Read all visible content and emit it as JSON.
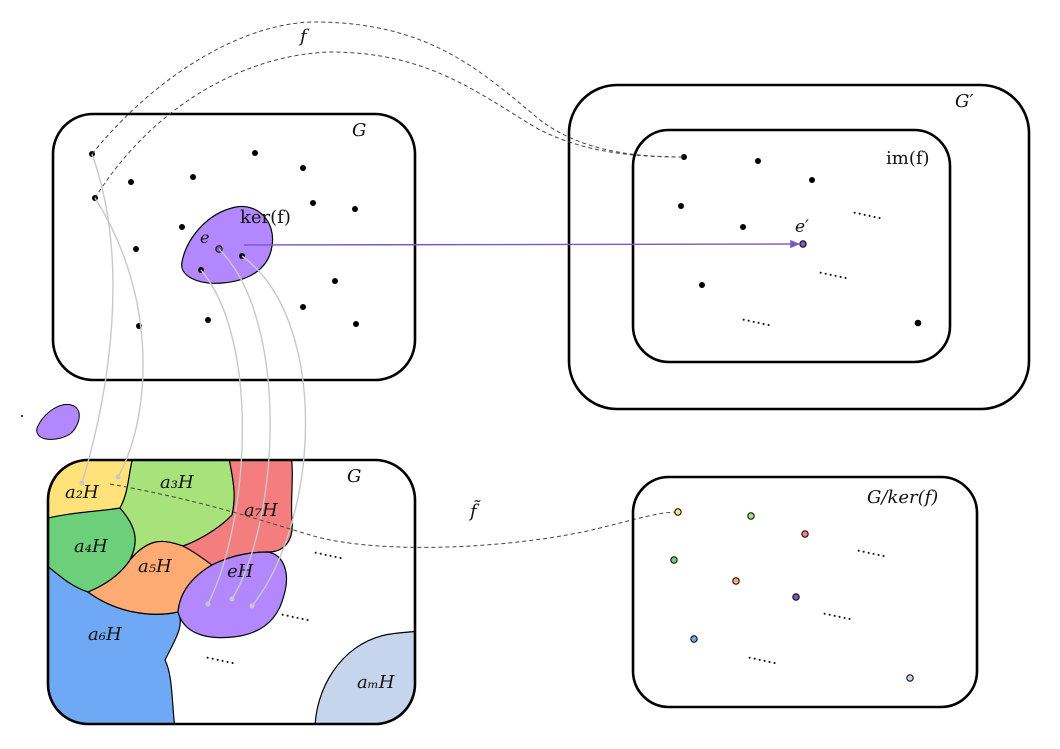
{
  "labels": {
    "G_top": "G",
    "G_prime": "G′",
    "im_f": "im(f)",
    "ker_f": "ker(f)",
    "e": "e",
    "e_prime": "e′",
    "f_map": "f",
    "f_tilde": "f̃",
    "G_bottom": "G",
    "quotient": "G/ker(f)"
  },
  "cosets": {
    "a2H": "a₂H",
    "a3H": "a₃H",
    "a4H": "a₄H",
    "a5H": "a₅H",
    "a6H": "a₆H",
    "a7H": "a₇H",
    "eH": "eH",
    "amH": "aₘH"
  },
  "ellipsis": "......",
  "colors": {
    "kernel_purple": "#b388ff",
    "arrow_purple": "#7e57c2",
    "yellow": "#ffe27a",
    "light_green": "#a8e27a",
    "green": "#6ccf7a",
    "orange": "#ffab73",
    "blue": "#6fa8f5",
    "red": "#f47d7d",
    "pale_blue": "#c6d5ec"
  }
}
